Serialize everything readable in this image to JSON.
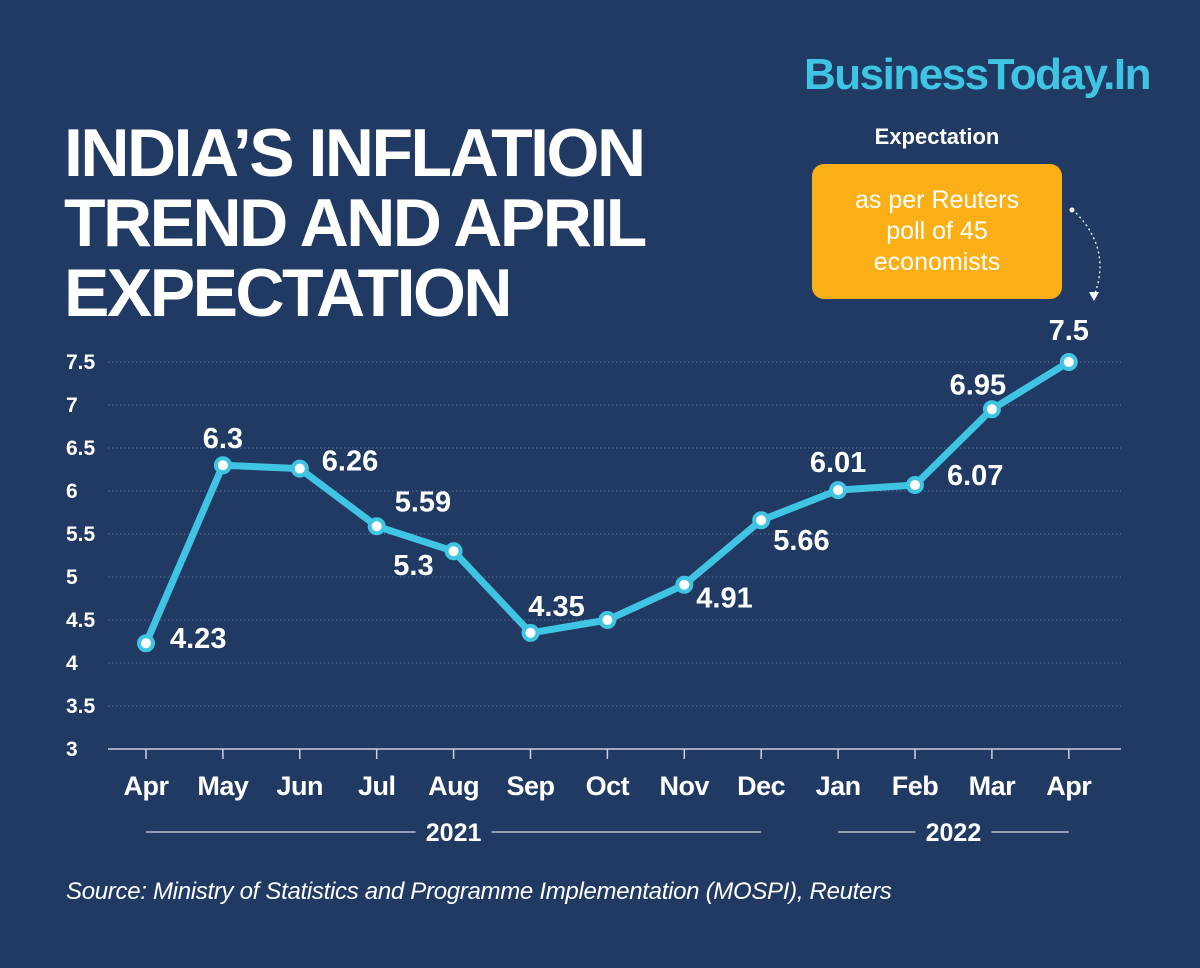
{
  "brand": "BusinessToday.In",
  "title_lines": [
    "INDIA’S INFLATION",
    "TREND AND APRIL",
    "EXPECTATION"
  ],
  "expectation": {
    "heading": "Expectation",
    "note": "as per Reuters poll of 45 economists"
  },
  "source": "Source: Ministry of Statistics and Programme Implementation (MOSPI), Reuters",
  "colors": {
    "background": "#213a63",
    "line": "#3fc5e3",
    "brand": "#3fc5e3",
    "callout": "#fbaf17",
    "text": "#ffffff"
  },
  "chart_data": {
    "type": "line",
    "categories": [
      "Apr",
      "May",
      "Jun",
      "Jul",
      "Aug",
      "Sep",
      "Oct",
      "Nov",
      "Dec",
      "Jan",
      "Feb",
      "Mar",
      "Apr"
    ],
    "values": [
      4.23,
      6.3,
      6.26,
      5.59,
      5.3,
      4.35,
      4.5,
      4.91,
      5.66,
      6.01,
      6.07,
      6.95,
      7.5
    ],
    "data_labels": [
      "4.23",
      "6.3",
      "6.26",
      "5.59",
      "5.3",
      "4.35",
      null,
      "4.91",
      "5.66",
      "6.01",
      "6.07",
      "6.95",
      "7.5"
    ],
    "yticks": [
      "3",
      "3.5",
      "4",
      "4.5",
      "5",
      "5.5",
      "6",
      "6.5",
      "7",
      "7.5"
    ],
    "ylim": [
      3,
      7.5
    ],
    "year_groups": [
      {
        "label": "2021",
        "from": 0,
        "to": 8
      },
      {
        "label": "2022",
        "from": 9,
        "to": 12
      }
    ],
    "grid": "horizontal dotted",
    "title": "",
    "xlabel": "",
    "ylabel": ""
  }
}
